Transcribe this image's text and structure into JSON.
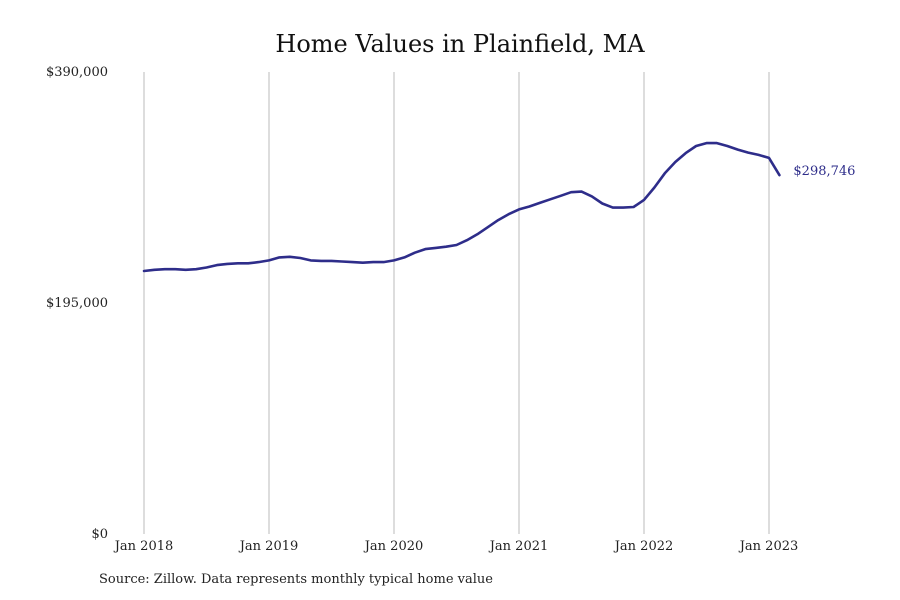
{
  "chart_data": {
    "type": "line",
    "title": "Home Values in Plainfield, MA",
    "source_note": "Source: Zillow. Data represents monthly typical home value",
    "line_color": "#2e2d8a",
    "grid_color": "#bbbbbb",
    "ylim": [
      0,
      390000
    ],
    "y_ticks": [
      {
        "value": 0,
        "label": "$0"
      },
      {
        "value": 195000,
        "label": "$195,000"
      },
      {
        "value": 390000,
        "label": "$390,000"
      }
    ],
    "x_ticks": [
      "Jan 2018",
      "Jan 2019",
      "Jan 2020",
      "Jan 2021",
      "Jan 2022",
      "Jan 2023"
    ],
    "x_range": [
      "2018-01",
      "2023-01"
    ],
    "grid": "vertical",
    "end_label": "$298,746",
    "series": [
      {
        "x": [
          "2018-01",
          "2018-02",
          "2018-03",
          "2018-04",
          "2018-05",
          "2018-06",
          "2018-07",
          "2018-08",
          "2018-09",
          "2018-10",
          "2018-11",
          "2018-12",
          "2019-01",
          "2019-02",
          "2019-03",
          "2019-04",
          "2019-05",
          "2019-06",
          "2019-07",
          "2019-08",
          "2019-09",
          "2019-10",
          "2019-11",
          "2019-12",
          "2020-01",
          "2020-02",
          "2020-03",
          "2020-04",
          "2020-05",
          "2020-06",
          "2020-07",
          "2020-08",
          "2020-09",
          "2020-10",
          "2020-11",
          "2020-12",
          "2021-01",
          "2021-02",
          "2021-03",
          "2021-04",
          "2021-05",
          "2021-06",
          "2021-07",
          "2021-08",
          "2021-09",
          "2021-10",
          "2021-11",
          "2021-12",
          "2022-01",
          "2022-02",
          "2022-03",
          "2022-04",
          "2022-05",
          "2022-06",
          "2022-07",
          "2022-08",
          "2022-09",
          "2022-10",
          "2022-11",
          "2022-12",
          "2023-01",
          "2023-02"
        ],
        "values": [
          222000,
          223000,
          223500,
          223500,
          223000,
          223500,
          225000,
          227000,
          228000,
          228500,
          228500,
          229500,
          231000,
          233500,
          234000,
          233000,
          231000,
          230500,
          230500,
          230000,
          229500,
          229000,
          229500,
          229500,
          231000,
          233500,
          237500,
          240500,
          241500,
          242500,
          244000,
          248000,
          253000,
          259000,
          265000,
          270000,
          274000,
          276500,
          279500,
          282500,
          285500,
          288500,
          289000,
          285000,
          279000,
          275500,
          275500,
          276000,
          282000,
          292500,
          304500,
          314000,
          321500,
          327500,
          330000,
          330000,
          327500,
          324500,
          322000,
          320000,
          317500,
          303000
        ]
      }
    ]
  }
}
